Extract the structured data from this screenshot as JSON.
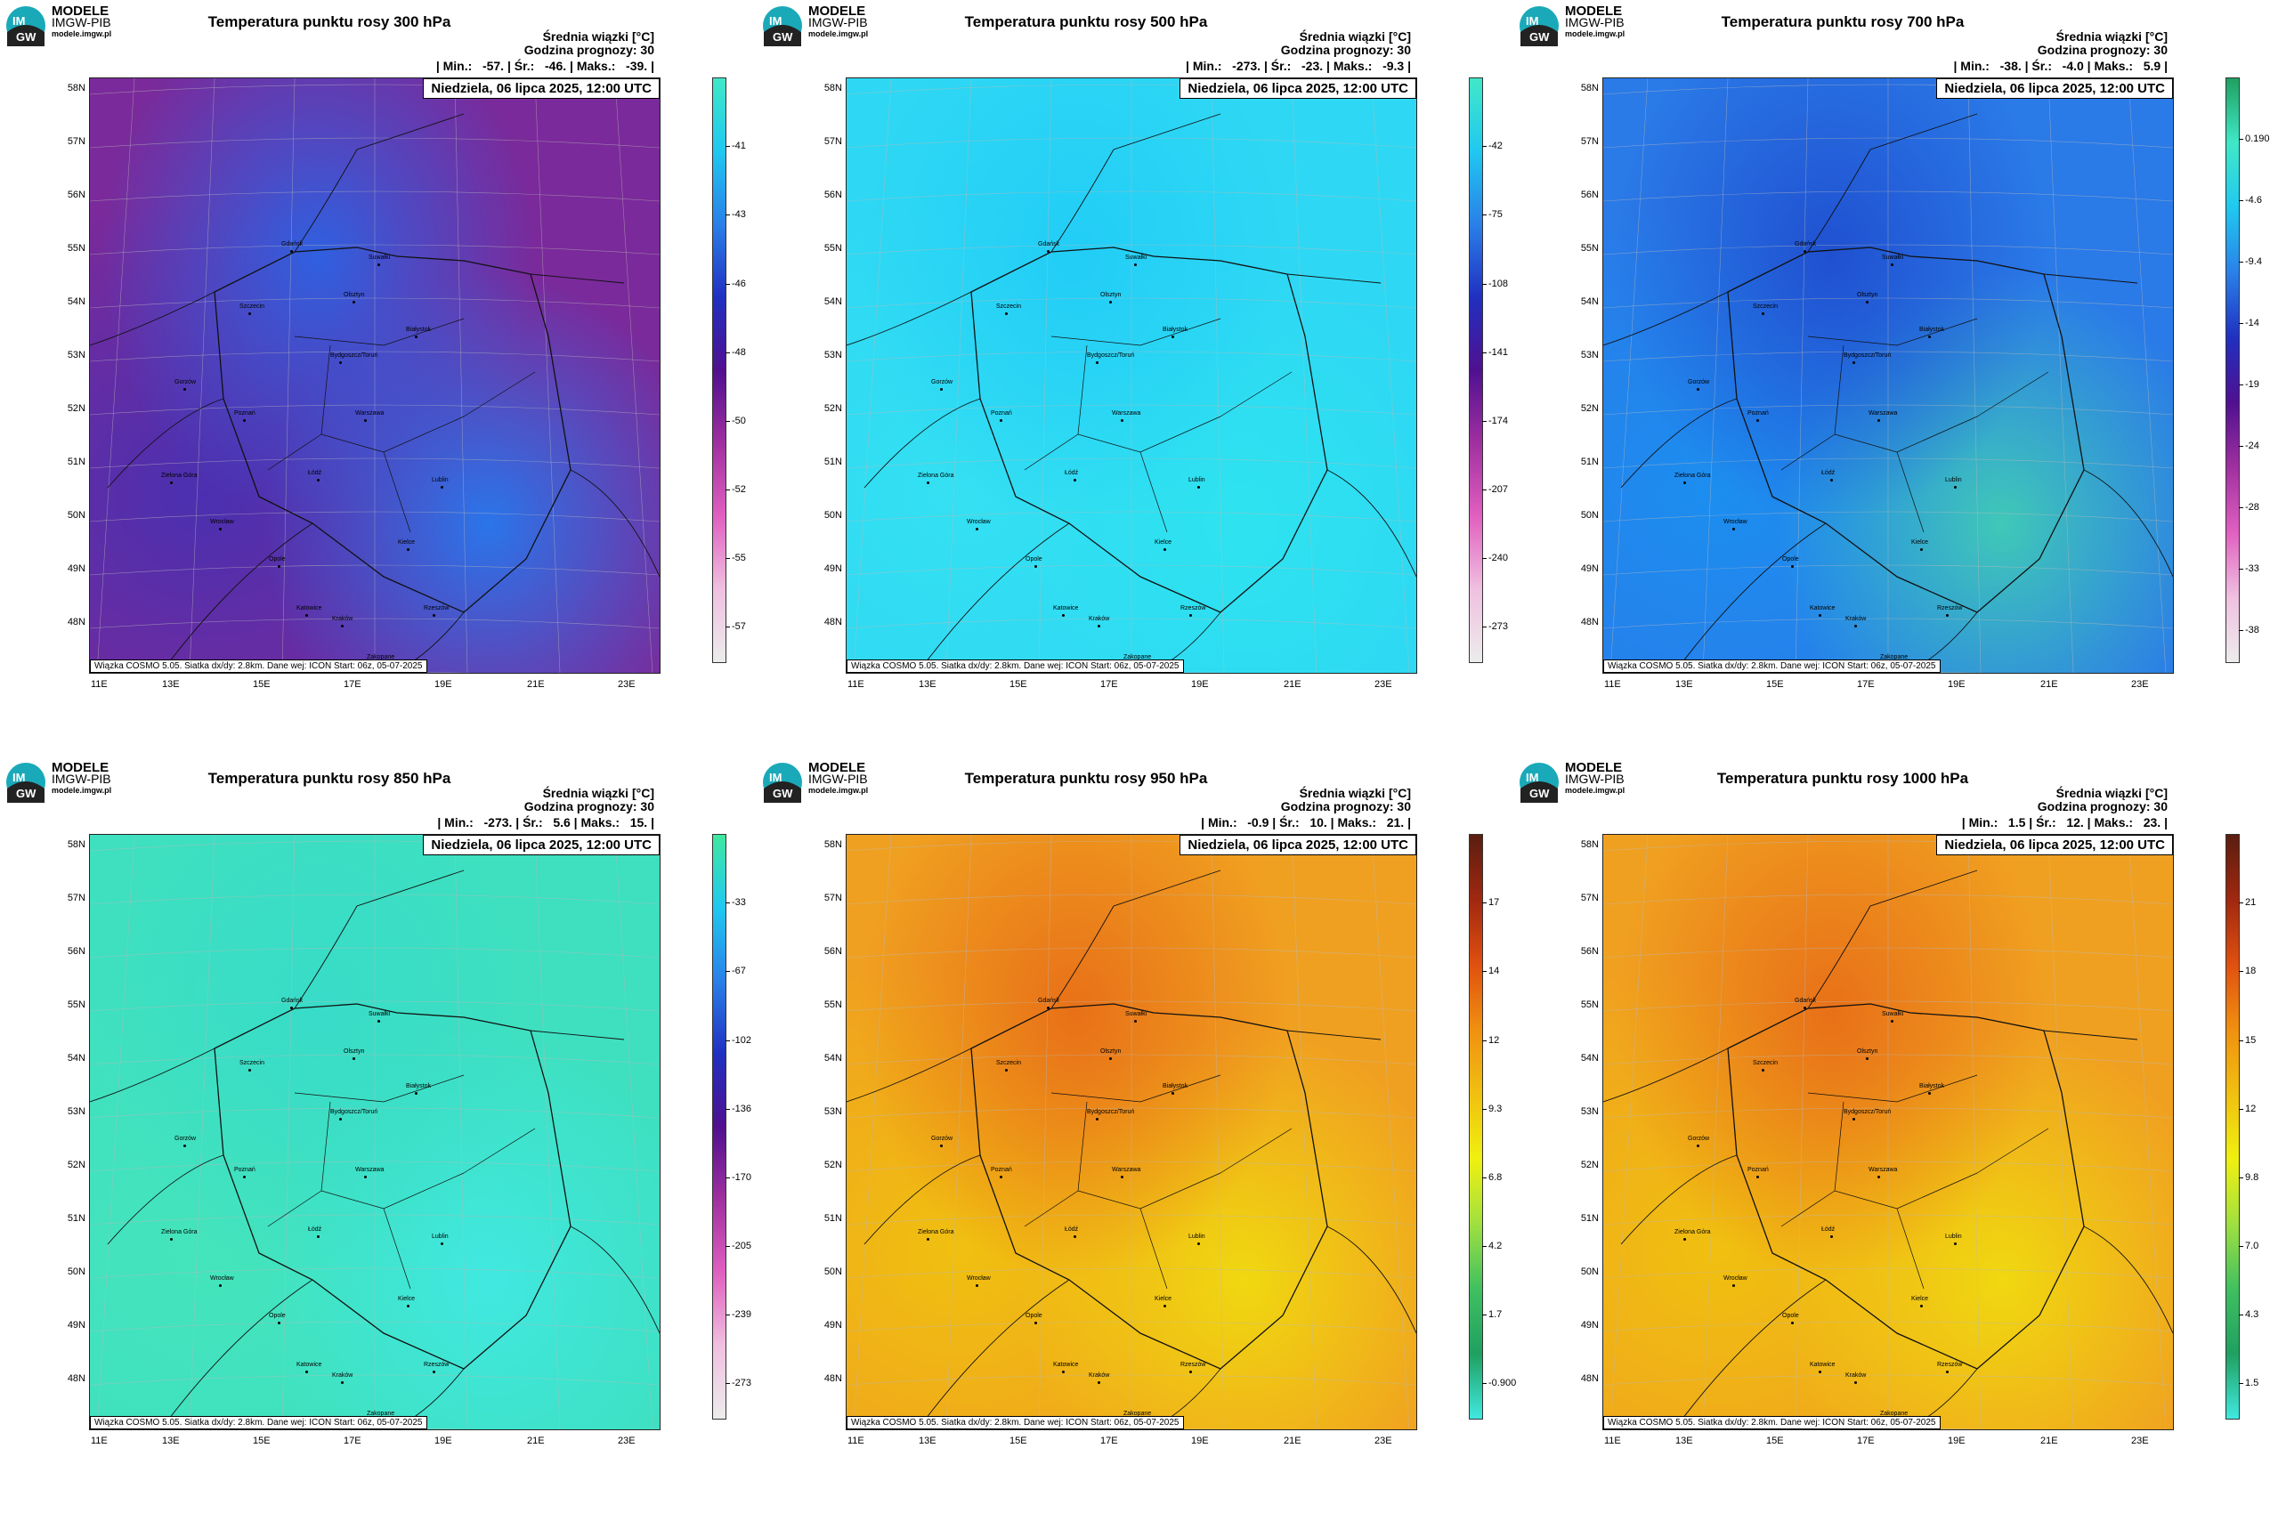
{
  "logo": {
    "line1": "MODELE",
    "line2": "IMGW-PIB",
    "line3": "modele.imgw.pl"
  },
  "header": {
    "line1": "Średnia wiązki [°C]",
    "line2": "Godzina prognozy: 30"
  },
  "date_label": "Niedziela, 06 lipca 2025, 12:00 UTC",
  "footer": "Wiązka COSMO 5.05. Siatka dx/dy: 2.8km. Dane wej: ICON Start: 06z, 05-07-2025",
  "lat_labels": [
    "58N",
    "57N",
    "56N",
    "55N",
    "54N",
    "53N",
    "52N",
    "51N",
    "50N",
    "49N",
    "48N"
  ],
  "lon_labels": [
    "11E",
    "13E",
    "15E",
    "17E",
    "19E",
    "21E",
    "23E"
  ],
  "panels": [
    {
      "title": "Temperatura punktu rosy 300 hPa",
      "stats": "| Min.:   -57. | Śr.:   -46. | Maks.:   -39. |",
      "colors": [
        "#7a2a9a",
        "#4a30b0",
        "#2f60e0",
        "#2a75ea"
      ],
      "ticks": [
        "-41",
        "-43",
        "-46",
        "-48",
        "-50",
        "-52",
        "-55",
        "-57"
      ],
      "bar": [
        "#40e8c8",
        "#20c8f0",
        "#2a80e8",
        "#2030c0",
        "#501090",
        "#a030a0",
        "#e060c0",
        "#f0c0e0",
        "#ececec"
      ]
    },
    {
      "title": "Temperatura punktu rosy 500 hPa",
      "stats": "| Min.:   -273. | Śr.:   -23. | Maks.:   -9.3 |",
      "colors": [
        "#2ed8f4",
        "#34e0f2",
        "#22cdf6",
        "#2ee3ef"
      ],
      "ticks": [
        "-42",
        "-75",
        "-108",
        "-141",
        "-174",
        "-207",
        "-240",
        "-273"
      ],
      "bar": [
        "#40e8c8",
        "#20c8f0",
        "#2a80e8",
        "#2030c0",
        "#501090",
        "#a030a0",
        "#e060c0",
        "#f0c0e0",
        "#ececec"
      ]
    },
    {
      "title": "Temperatura punktu rosy 700 hPa",
      "stats": "| Min.:   -38. | Śr.:   -4.0 | Maks.:   5.9 |",
      "colors": [
        "#2a7ae8",
        "#1c8ef0",
        "#2050d0",
        "#40c8b8"
      ],
      "ticks": [
        "0.190",
        "-4.6",
        "-9.4",
        "-14",
        "-19",
        "-24",
        "-28",
        "-33",
        "-38"
      ],
      "bar": [
        "#20a060",
        "#40e8c8",
        "#20c8f0",
        "#2a80e8",
        "#2030c0",
        "#501090",
        "#a030a0",
        "#e060c0",
        "#f0c0e0",
        "#ececec"
      ]
    },
    {
      "title": "Temperatura punktu rosy 850 hPa",
      "stats": "| Min.:   -273. | Śr.:   5.6 | Maks.:   15. |",
      "colors": [
        "#3ee0c0",
        "#44e4bc",
        "#38dcc8",
        "#40e8e0"
      ],
      "ticks": [
        "-33",
        "-67",
        "-102",
        "-136",
        "-170",
        "-205",
        "-239",
        "-273"
      ],
      "bar": [
        "#40e8a0",
        "#20c8f0",
        "#2a80e8",
        "#2030c0",
        "#501090",
        "#a030a0",
        "#e060c0",
        "#f0c0e0",
        "#ececec"
      ]
    },
    {
      "title": "Temperatura punktu rosy 950 hPa",
      "stats": "| Min.:   -0.9 | Śr.:   10. | Maks.:   21. |",
      "colors": [
        "#f0a020",
        "#f0c010",
        "#e87018",
        "#f0d810"
      ],
      "ticks": [
        "17",
        "14",
        "12",
        "9.3",
        "6.8",
        "4.2",
        "1.7",
        "-0.900"
      ],
      "bar": [
        "#5a1e10",
        "#a02810",
        "#e05010",
        "#f09010",
        "#f0c010",
        "#f0f010",
        "#a0e040",
        "#40c060",
        "#20a060",
        "#40e8e0"
      ]
    },
    {
      "title": "Temperatura punktu rosy 1000 hPa",
      "stats": "| Min.:   1.5 | Śr.:   12. | Maks.:   23. |",
      "colors": [
        "#f0a020",
        "#f0c010",
        "#e87018",
        "#f0d810"
      ],
      "ticks": [
        "21",
        "18",
        "15",
        "12",
        "9.8",
        "7.0",
        "4.3",
        "1.5"
      ],
      "bar": [
        "#5a1e10",
        "#a02810",
        "#e05010",
        "#f09010",
        "#f0c010",
        "#f0f010",
        "#a0e040",
        "#40c060",
        "#20a060",
        "#40e8e0"
      ]
    }
  ],
  "cities": [
    "Gdańsk",
    "Suwałki",
    "Olsztyn",
    "Szczecin",
    "Białystok",
    "Bydgoszcz/Toruń",
    "Gorzów",
    "Poznań",
    "Warszawa",
    "Zielona Góra",
    "Łódź",
    "Lublin",
    "Wrocław",
    "Kielce",
    "Opole",
    "Rzeszów",
    "Katowice",
    "Kraków",
    "Zakopane"
  ]
}
